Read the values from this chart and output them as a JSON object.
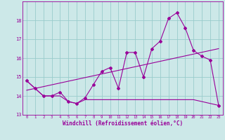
{
  "xlabel": "Windchill (Refroidissement éolien,°C)",
  "bg_color": "#cce8e8",
  "line_color": "#990099",
  "grid_color": "#99cccc",
  "xlim": [
    -0.5,
    23.5
  ],
  "ylim": [
    13.0,
    19.0
  ],
  "yticks": [
    13,
    14,
    15,
    16,
    17,
    18
  ],
  "xticks": [
    0,
    1,
    2,
    3,
    4,
    5,
    6,
    7,
    8,
    9,
    10,
    11,
    12,
    13,
    14,
    15,
    16,
    17,
    18,
    19,
    20,
    21,
    22,
    23
  ],
  "hours": [
    0,
    1,
    2,
    3,
    4,
    5,
    6,
    7,
    8,
    9,
    10,
    11,
    12,
    13,
    14,
    15,
    16,
    17,
    18,
    19,
    20,
    21,
    22,
    23
  ],
  "temp_line": [
    14.8,
    14.4,
    14.0,
    14.0,
    14.2,
    13.7,
    13.6,
    13.9,
    14.6,
    15.3,
    15.5,
    14.4,
    16.3,
    16.3,
    15.0,
    16.5,
    16.9,
    18.1,
    18.4,
    17.6,
    16.4,
    16.1,
    15.9,
    13.5
  ],
  "min_line": [
    14.8,
    14.4,
    14.0,
    14.0,
    14.0,
    13.7,
    13.6,
    13.8,
    13.8,
    13.8,
    13.8,
    13.8,
    13.8,
    13.8,
    13.8,
    13.8,
    13.8,
    13.8,
    13.8,
    13.8,
    13.8,
    13.7,
    13.6,
    13.5
  ],
  "trend_line_x": [
    0,
    23
  ],
  "trend_line_y": [
    14.3,
    16.5
  ]
}
